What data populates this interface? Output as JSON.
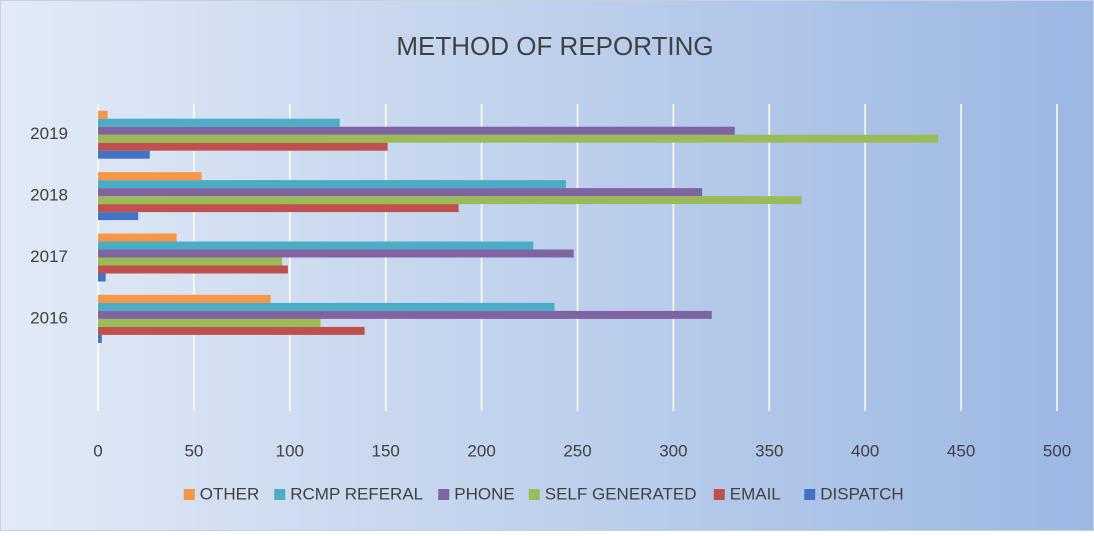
{
  "chart_data": {
    "type": "bar",
    "orientation": "horizontal",
    "title": "METHOD OF REPORTING",
    "categories": [
      null,
      "2016",
      "2017",
      "2018",
      "2019"
    ],
    "series": [
      {
        "name": "DISPATCH",
        "color": "#4472c4",
        "values": [
          null,
          2,
          4,
          21,
          27
        ]
      },
      {
        "name": "EMAIL",
        "color": "#c0504d",
        "values": [
          null,
          139,
          99,
          188,
          151
        ]
      },
      {
        "name": "SELF GENERATED",
        "color": "#9bbb59",
        "values": [
          null,
          116,
          96,
          367,
          438
        ]
      },
      {
        "name": "PHONE",
        "color": "#8064a2",
        "values": [
          null,
          320,
          248,
          315,
          332
        ]
      },
      {
        "name": "RCMP REFERAL",
        "color": "#4bacc6",
        "values": [
          null,
          238,
          227,
          244,
          126
        ]
      },
      {
        "name": "OTHER",
        "color": "#f79646",
        "values": [
          null,
          90,
          41,
          54,
          5
        ]
      }
    ],
    "xlim": [
      0,
      500
    ],
    "xticks": [
      0,
      50,
      100,
      150,
      200,
      250,
      300,
      350,
      400,
      450,
      500
    ],
    "grid": true,
    "legend": "bottom"
  }
}
